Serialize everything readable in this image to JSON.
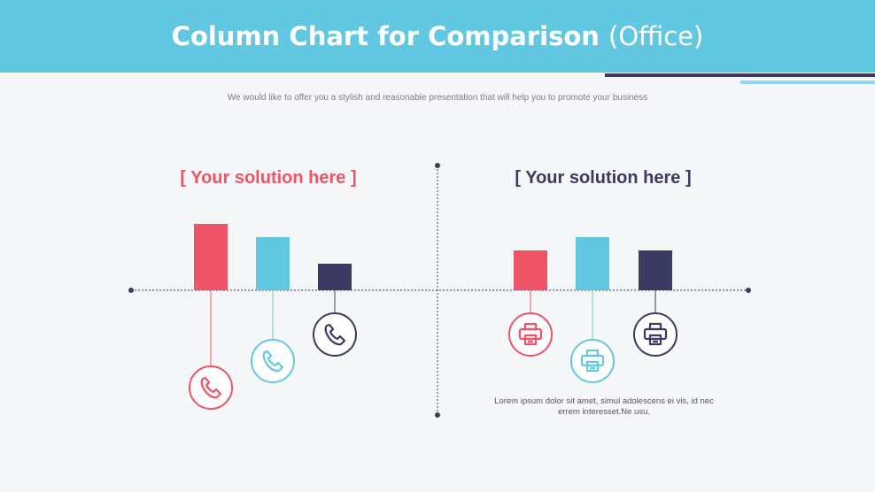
{
  "header": {
    "title": "Column Chart for Comparison",
    "title_suffix": "(Office)"
  },
  "subtitle": "We would like to offer you a stylish and reasonable presentation that will help you to promote your business",
  "colors": {
    "header_bg": "#62c8e2",
    "red": "#ef5367",
    "blue": "#62c8e2",
    "navy": "#3a3a62",
    "axis": "#3a3a62"
  },
  "panels": [
    {
      "title": "[ Your solution here ]",
      "title_color": "#ef5367",
      "icon": "phone-icon"
    },
    {
      "title": "[ Your solution here ]",
      "title_color": "#3a3a62",
      "icon": "printer-icon"
    }
  ],
  "note": "Lorem ipsum dolor sit amet, simul adolescens ei vis, id nec errem interesset.Ne usu.",
  "chart_data": [
    {
      "type": "bar",
      "categories": [
        "",
        "",
        ""
      ],
      "values": [
        75,
        60,
        30
      ],
      "colors": [
        "#ef5367",
        "#62c8e2",
        "#3a3a62"
      ],
      "ylim": [
        0,
        100
      ],
      "icon": "phone-icon",
      "icon_offsets": [
        110,
        80,
        50
      ]
    },
    {
      "type": "bar",
      "categories": [
        "",
        "",
        ""
      ],
      "values": [
        45,
        60,
        45
      ],
      "colors": [
        "#ef5367",
        "#62c8e2",
        "#3a3a62"
      ],
      "ylim": [
        0,
        100
      ],
      "icon": "printer-icon",
      "icon_offsets": [
        50,
        80,
        50
      ]
    }
  ]
}
